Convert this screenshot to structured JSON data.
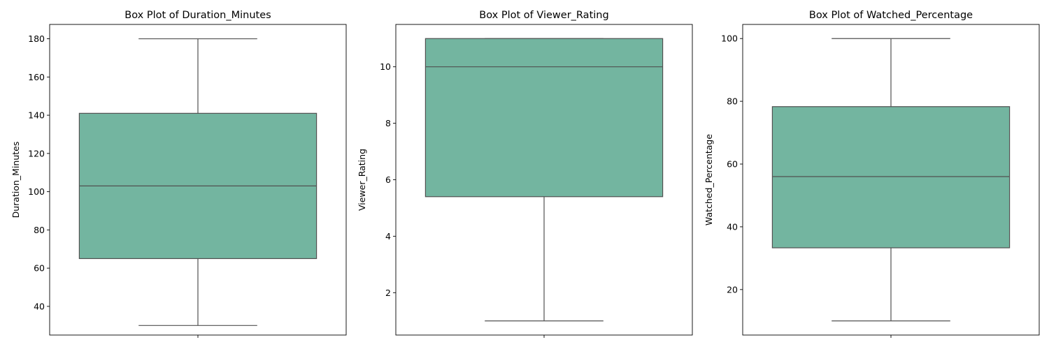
{
  "chart_data": [
    {
      "type": "box",
      "title": "Box Plot of Duration_Minutes",
      "xlabel": "",
      "ylabel": "Duration_Minutes",
      "ylim": [
        25,
        187.5
      ],
      "yticks": [
        40,
        60,
        80,
        100,
        120,
        140,
        160,
        180
      ],
      "stats": {
        "whisker_low": 30,
        "q1": 65,
        "median": 103,
        "q3": 141,
        "whisker_high": 180
      },
      "color": "#73b5a0"
    },
    {
      "type": "box",
      "title": "Box Plot of Viewer_Rating",
      "xlabel": "",
      "ylabel": "Viewer_Rating",
      "ylim": [
        0.5,
        11.5
      ],
      "yticks": [
        2,
        4,
        6,
        8,
        10
      ],
      "stats": {
        "whisker_low": 1,
        "q1": 5.4,
        "median": 10,
        "q3": 11,
        "whisker_high": 11
      },
      "color": "#73b5a0"
    },
    {
      "type": "box",
      "title": "Box Plot of Watched_Percentage",
      "xlabel": "",
      "ylabel": "Watched_Percentage",
      "ylim": [
        5.5,
        104.5
      ],
      "yticks": [
        20,
        40,
        60,
        80,
        100
      ],
      "stats": {
        "whisker_low": 10,
        "q1": 33.3,
        "median": 56,
        "q3": 78.3,
        "whisker_high": 100
      },
      "color": "#73b5a0"
    }
  ]
}
